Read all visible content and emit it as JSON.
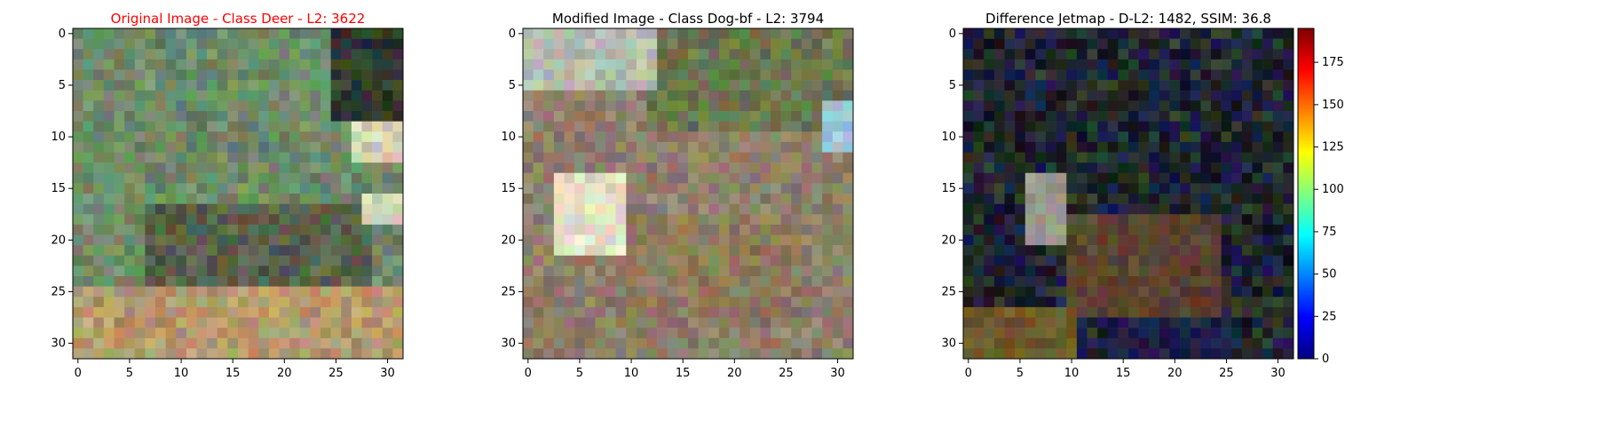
{
  "panels": [
    {
      "title": "Original Image - Class Deer - L2: 3622",
      "title_color": "#ff0000",
      "x_ticks": [
        0,
        5,
        10,
        15,
        20,
        25,
        30
      ],
      "y_ticks": [
        0,
        5,
        10,
        15,
        20,
        25,
        30
      ],
      "image_range": [
        0,
        31
      ],
      "palette": {
        "foliage": "#6f8a68",
        "dark_foliage": "#2f3a2c",
        "light_patch": "#cfd3b6",
        "ground": "#b49a6c",
        "deer_body": "#57604b"
      }
    },
    {
      "title": "Modified Image - Class Dog-bf - L2: 3794",
      "title_color": "#000000",
      "x_ticks": [
        0,
        5,
        10,
        15,
        20,
        25,
        30
      ],
      "y_ticks": [
        0,
        5,
        10,
        15,
        20,
        25,
        30
      ],
      "image_range": [
        0,
        31
      ],
      "palette": {
        "sky": "#b7bfae",
        "foliage": "#69774f",
        "dark_foliage": "#3a4032",
        "light_patch": "#e6e1c8",
        "blue_patch": "#9fc4d8",
        "ground": "#8f806a",
        "animal_body": "#8e7b5e"
      }
    },
    {
      "title": "Difference Jetmap - D-L2: 1482, SSIM: 36.8",
      "title_color": "#000000",
      "x_ticks": [
        0,
        5,
        10,
        15,
        20,
        25,
        30
      ],
      "y_ticks": [
        0,
        5,
        10,
        15,
        20,
        25,
        30
      ],
      "image_range": [
        0,
        31
      ],
      "palette": {
        "background": "#1a1d22",
        "dark_blue": "#1d1f4a",
        "green_tint": "#2b3a28",
        "brown": "#5a4330",
        "yellow": "#6b5a2a",
        "light_patch": "#9c9a8c"
      }
    }
  ],
  "colorbar": {
    "ticks": [
      0,
      25,
      50,
      75,
      100,
      125,
      150,
      175
    ],
    "range": [
      0,
      195
    ],
    "colors": [
      "#00007f",
      "#0000ff",
      "#007fff",
      "#00ffff",
      "#7fff7f",
      "#ffff00",
      "#ff7f00",
      "#ff0000",
      "#7f0000"
    ]
  }
}
